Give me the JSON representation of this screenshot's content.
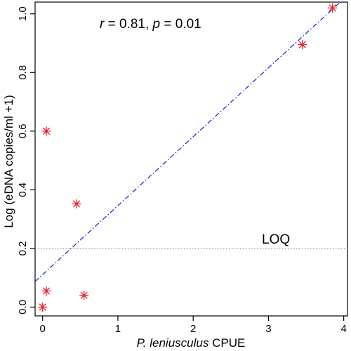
{
  "chart_data": {
    "type": "scatter",
    "title": "",
    "xlabel_italic": "P. leniusculus",
    "xlabel_rest": " CPUE",
    "ylabel": "Log (eDNA copies/ml +1)",
    "xlim": [
      -0.1,
      4.05
    ],
    "ylim": [
      -0.03,
      1.04
    ],
    "x_ticks": [
      0,
      1,
      2,
      3,
      4
    ],
    "y_ticks": [
      0.0,
      0.2,
      0.4,
      0.6,
      0.8,
      1.0
    ],
    "y_tick_labels": [
      "0.0",
      "0.2",
      "0.4",
      "0.6",
      "0.8",
      "1.0"
    ],
    "points": [
      {
        "x": 0.0,
        "y": 0.0
      },
      {
        "x": 0.05,
        "y": 0.055
      },
      {
        "x": 0.05,
        "y": 0.6
      },
      {
        "x": 0.45,
        "y": 0.352
      },
      {
        "x": 0.55,
        "y": 0.04
      },
      {
        "x": 3.45,
        "y": 0.895
      },
      {
        "x": 3.85,
        "y": 1.02
      }
    ],
    "marker": "asterisk",
    "marker_color": "#e8202a",
    "fit_line": {
      "intercept": 0.111,
      "slope": 0.235,
      "color": "#1a1adb",
      "style": "dash-dot"
    },
    "loq": {
      "value": 0.2,
      "label": "LOQ",
      "style": "dotted",
      "color": "#777777"
    },
    "stat_annotation": {
      "r_symbol": "r",
      "r_text": " = 0.81, ",
      "p_symbol": "p",
      "p_text": " = 0.01"
    },
    "grid": false,
    "legend": "none"
  }
}
